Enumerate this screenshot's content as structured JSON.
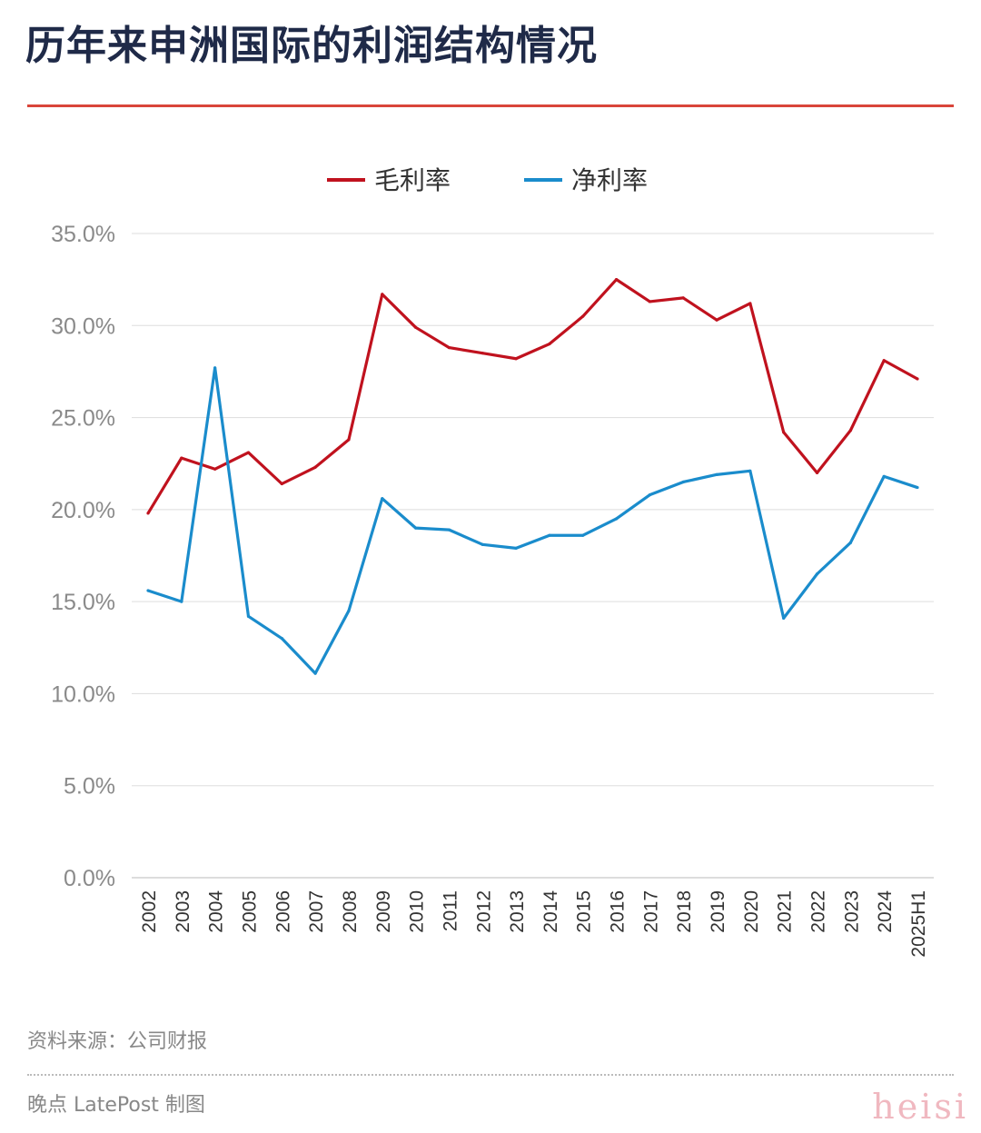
{
  "title": "历年来申洲国际的利润结构情况",
  "source": "资料来源：公司财报",
  "footer": "晚点 LatePost 制图",
  "watermark": "heisi",
  "chart_data": {
    "type": "line",
    "title": "历年来申洲国际的利润结构情况",
    "legend_position": "top",
    "grid": true,
    "ylim": [
      0,
      35
    ],
    "yticks": [
      "0.0%",
      "5.0%",
      "10.0%",
      "15.0%",
      "20.0%",
      "25.0%",
      "30.0%",
      "35.0%"
    ],
    "categories": [
      "2002",
      "2003",
      "2004",
      "2005",
      "2006",
      "2007",
      "2008",
      "2009",
      "2010",
      "2011",
      "2012",
      "2013",
      "2014",
      "2015",
      "2016",
      "2017",
      "2018",
      "2019",
      "2020",
      "2021",
      "2022",
      "2023",
      "2024",
      "2025H1"
    ],
    "series": [
      {
        "name": "毛利率",
        "color": "#c0121e",
        "values": [
          19.8,
          22.8,
          22.2,
          23.1,
          21.4,
          22.3,
          23.8,
          31.7,
          29.9,
          28.8,
          28.5,
          28.2,
          29.0,
          30.5,
          32.5,
          31.3,
          31.5,
          30.3,
          31.2,
          24.2,
          22.0,
          24.3,
          28.1,
          27.1
        ]
      },
      {
        "name": "净利率",
        "color": "#1a8ccc",
        "values": [
          15.6,
          15.0,
          27.7,
          14.2,
          13.0,
          11.1,
          14.5,
          20.6,
          19.0,
          18.9,
          18.1,
          17.9,
          18.6,
          18.6,
          19.5,
          20.8,
          21.5,
          21.9,
          22.1,
          14.1,
          16.5,
          18.2,
          21.8,
          21.2
        ]
      }
    ]
  }
}
